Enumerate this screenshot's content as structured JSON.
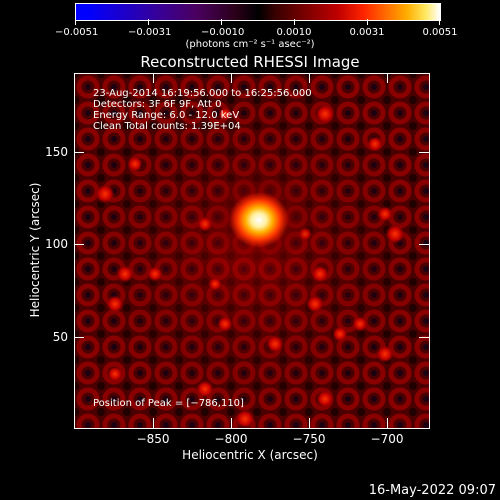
{
  "colorbar": {
    "ticks": [
      "−0.0051",
      "−0.0031",
      "−0.0010",
      "0.0010",
      "0.0031",
      "0.0051"
    ],
    "units": "(photons cm⁻² s⁻¹ asec⁻²)"
  },
  "title": "Reconstructed RHESSI Image",
  "info": {
    "line1": "23-Aug-2014 16:19:56.000 to 16:25:56.000",
    "line2": "Detectors: 3F 6F 9F, Att 0",
    "line3": "Energy Range: 6.0 - 12.0 keV",
    "line4": "Clean     Total counts: 1.39E+04"
  },
  "peak_text": "Position of Peak = [−786,110]",
  "x_axis": {
    "label": "Heliocentric X (arcsec)",
    "ticks": [
      "−850",
      "−800",
      "−750",
      "−700"
    ]
  },
  "y_axis": {
    "label": "Heliocentric Y (arcsec)",
    "ticks": [
      "150",
      "100",
      "50"
    ]
  },
  "timestamp": "16-May-2022 09:07",
  "colors": {
    "background": "#000000",
    "peak": "#ffffff",
    "hot": "#ff3000",
    "dim": "#5a0000"
  }
}
